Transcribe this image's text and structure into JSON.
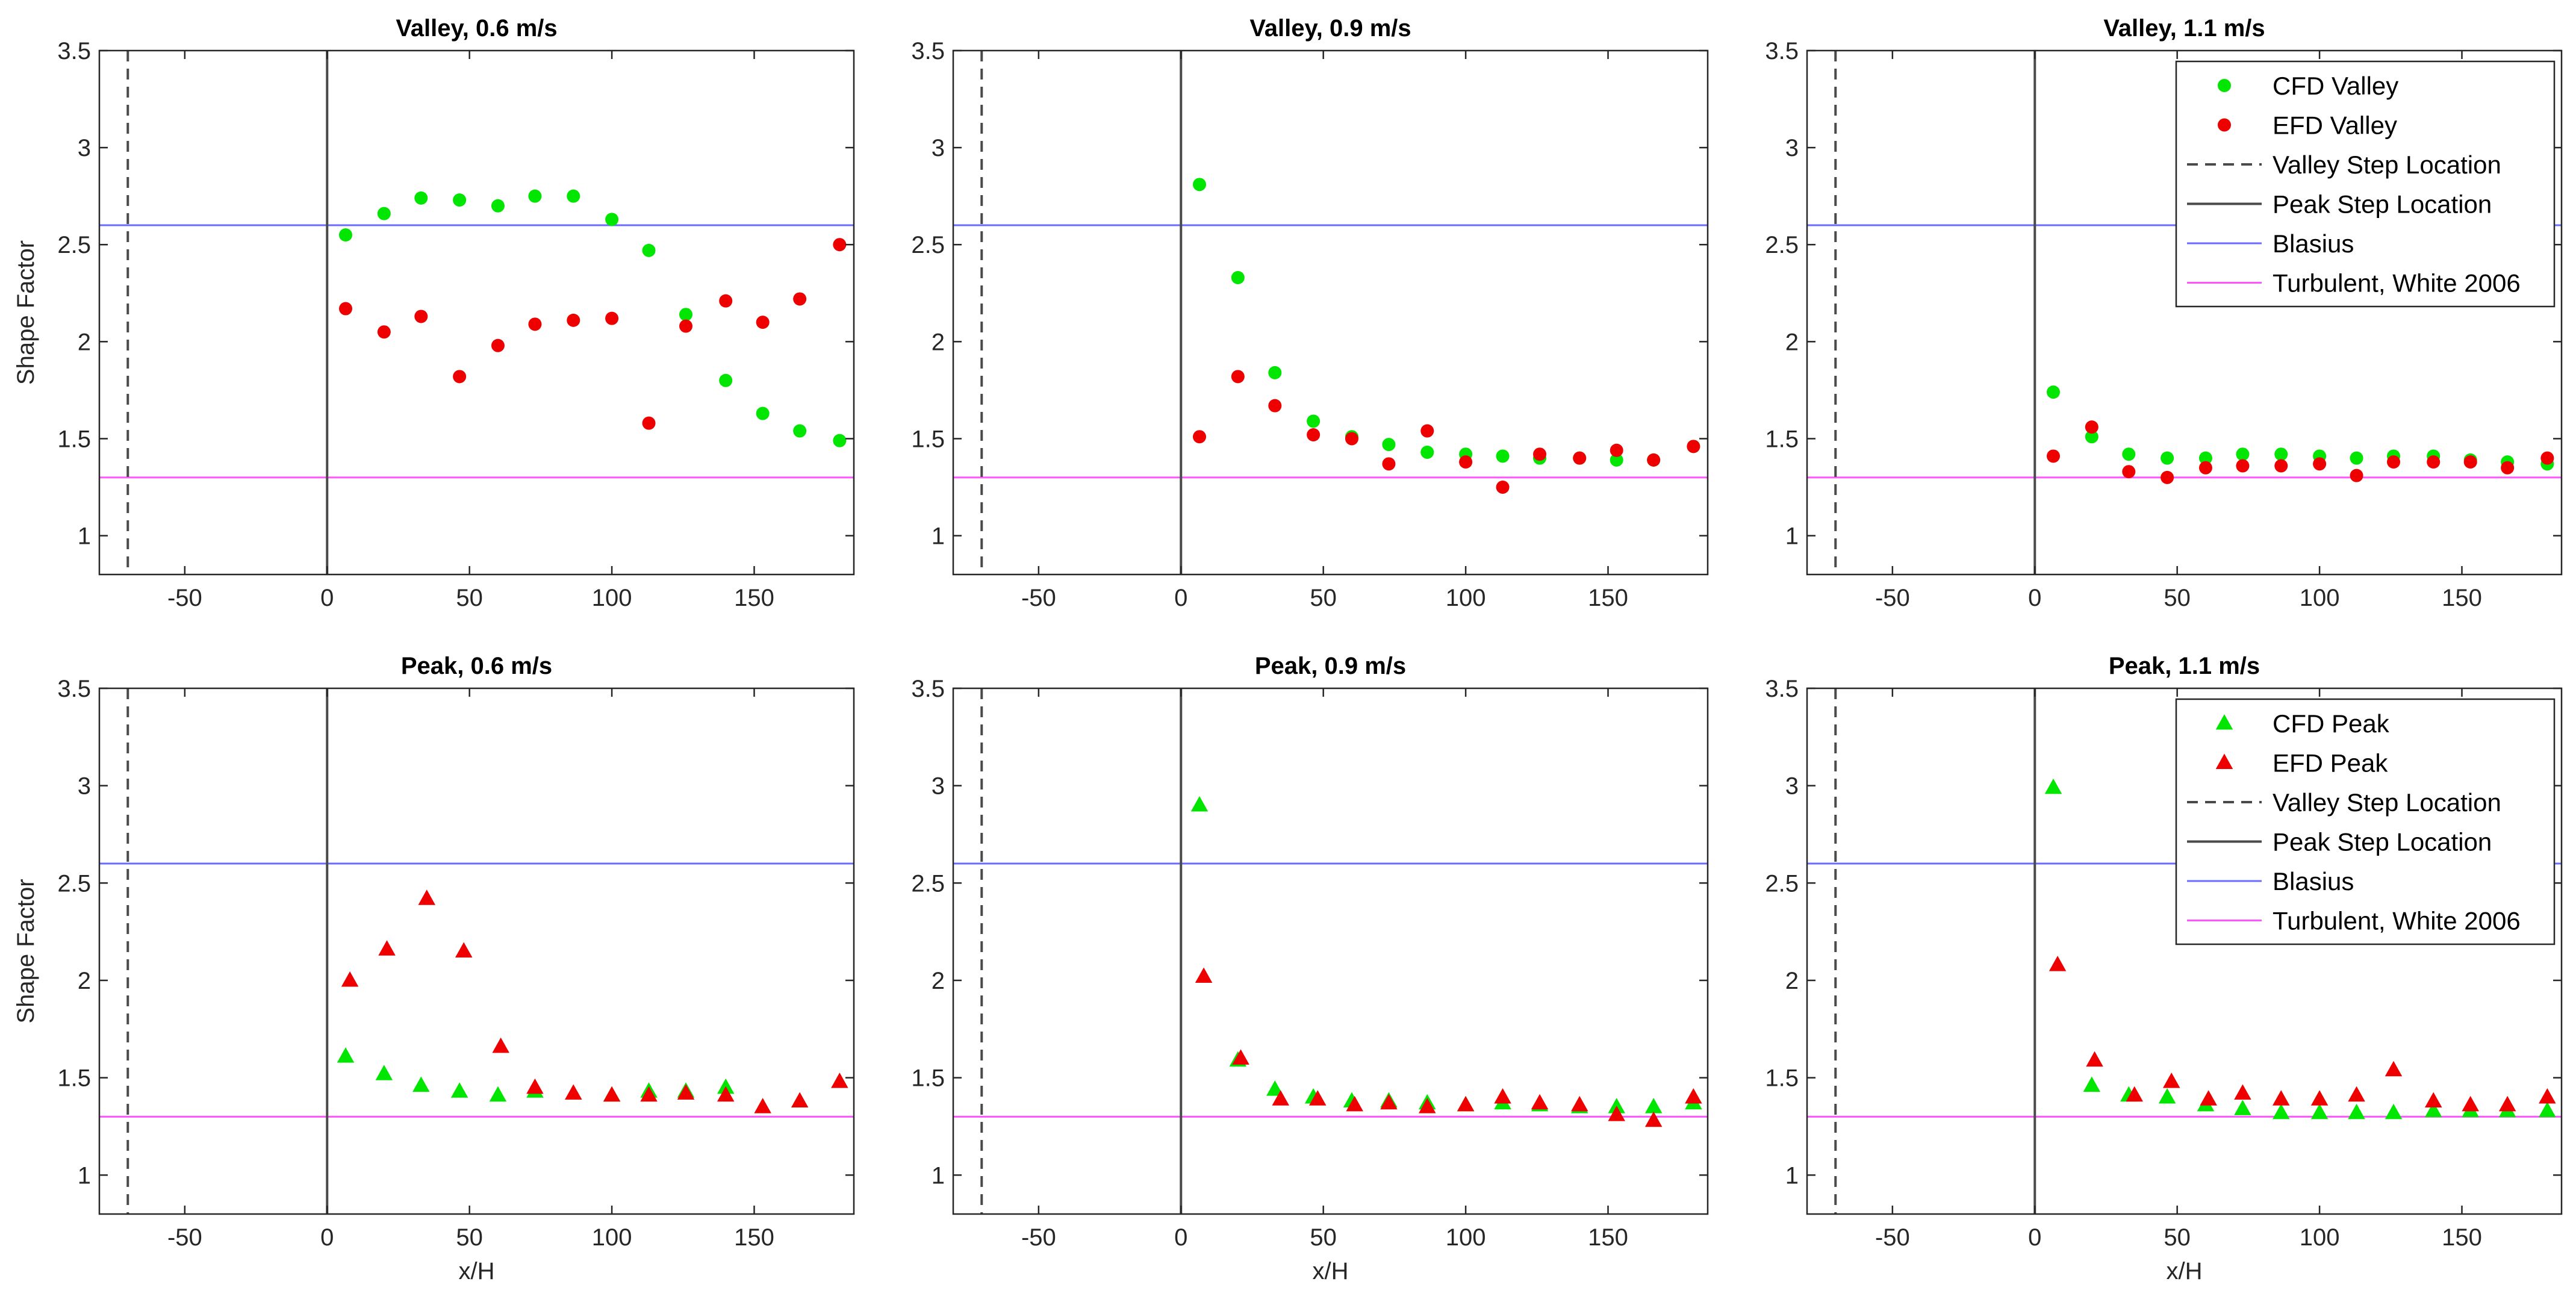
{
  "colors": {
    "cfd": "#00e600",
    "efd": "#ee0000",
    "blasius": "#6b6bff",
    "turbulent": "#ff55ff",
    "step": "#4a4a4a",
    "axes": "#262626"
  },
  "reference_lines": {
    "valley_step_x": -70,
    "peak_step_x": 0,
    "blasius_y": 2.6,
    "turbulent_y": 1.3
  },
  "legends": [
    {
      "panel_index": 2,
      "entries": [
        {
          "label": "CFD Valley",
          "marker": "circle",
          "color": "#00e600"
        },
        {
          "label": "EFD Valley",
          "marker": "circle",
          "color": "#ee0000"
        },
        {
          "label": "Valley Step Location",
          "line": "dashed",
          "color": "#4a4a4a"
        },
        {
          "label": "Peak Step Location",
          "line": "solid",
          "color": "#4a4a4a"
        },
        {
          "label": "Blasius",
          "line": "solid",
          "color": "#6b6bff"
        },
        {
          "label": "Turbulent, White 2006",
          "line": "solid",
          "color": "#ff55ff"
        }
      ]
    },
    {
      "panel_index": 5,
      "entries": [
        {
          "label": "CFD Peak",
          "marker": "triangle",
          "color": "#00e600"
        },
        {
          "label": "EFD Peak",
          "marker": "triangle",
          "color": "#ee0000"
        },
        {
          "label": "Valley Step Location",
          "line": "dashed",
          "color": "#4a4a4a"
        },
        {
          "label": "Peak Step Location",
          "line": "solid",
          "color": "#4a4a4a"
        },
        {
          "label": "Blasius",
          "line": "solid",
          "color": "#6b6bff"
        },
        {
          "label": "Turbulent, White 2006",
          "line": "solid",
          "color": "#ff55ff"
        }
      ]
    }
  ],
  "chart_data": [
    {
      "type": "scatter",
      "title": "Valley, 0.6 m/s",
      "marker": "circle",
      "xlabel": "",
      "ylabel": "Shape Factor",
      "xlim": [
        -80,
        185
      ],
      "ylim": [
        0.8,
        3.5
      ],
      "xticks": [
        -50,
        0,
        50,
        100,
        150
      ],
      "yticks": [
        1,
        1.5,
        2,
        2.5,
        3,
        3.5
      ],
      "series": [
        {
          "name": "CFD Valley",
          "x": [
            6.5,
            20,
            33,
            46.5,
            60,
            73,
            86.5,
            100,
            113,
            126,
            140,
            153,
            166,
            180
          ],
          "y": [
            2.55,
            2.66,
            2.74,
            2.73,
            2.7,
            2.75,
            2.75,
            2.63,
            2.47,
            2.14,
            1.8,
            1.63,
            1.54,
            1.49
          ]
        },
        {
          "name": "EFD Valley",
          "x": [
            6.5,
            20,
            33,
            46.5,
            60,
            73,
            86.5,
            100,
            113,
            126,
            140,
            153,
            166,
            180
          ],
          "y": [
            2.17,
            2.05,
            2.13,
            1.82,
            1.98,
            2.09,
            2.11,
            2.12,
            1.58,
            2.08,
            2.21,
            2.1,
            2.22,
            2.5
          ]
        }
      ]
    },
    {
      "type": "scatter",
      "title": "Valley, 0.9 m/s",
      "marker": "circle",
      "xlabel": "",
      "ylabel": "",
      "xlim": [
        -80,
        185
      ],
      "ylim": [
        0.8,
        3.5
      ],
      "xticks": [
        -50,
        0,
        50,
        100,
        150
      ],
      "yticks": [
        1,
        1.5,
        2,
        2.5,
        3,
        3.5
      ],
      "series": [
        {
          "name": "CFD Valley",
          "x": [
            6.5,
            20,
            33,
            46.5,
            60,
            73,
            86.5,
            100,
            113,
            126,
            140,
            153,
            166,
            180
          ],
          "y": [
            2.81,
            2.33,
            1.84,
            1.59,
            1.51,
            1.47,
            1.43,
            1.42,
            1.41,
            1.4,
            1.4,
            1.39,
            1.39,
            1.46
          ]
        },
        {
          "name": "EFD Valley",
          "x": [
            6.5,
            20,
            33,
            46.5,
            60,
            73,
            86.5,
            100,
            113,
            126,
            140,
            153,
            166,
            180
          ],
          "y": [
            1.51,
            1.82,
            1.67,
            1.52,
            1.5,
            1.37,
            1.54,
            1.38,
            1.25,
            1.42,
            1.4,
            1.44,
            1.39,
            1.46
          ]
        }
      ]
    },
    {
      "type": "scatter",
      "title": "Valley, 1.1 m/s",
      "marker": "circle",
      "xlabel": "",
      "ylabel": "",
      "xlim": [
        -80,
        185
      ],
      "ylim": [
        0.8,
        3.5
      ],
      "xticks": [
        -50,
        0,
        50,
        100,
        150
      ],
      "yticks": [
        1,
        1.5,
        2,
        2.5,
        3,
        3.5
      ],
      "series": [
        {
          "name": "CFD Valley",
          "x": [
            6.5,
            20,
            33,
            46.5,
            60,
            73,
            86.5,
            100,
            113,
            126,
            140,
            153,
            166,
            180
          ],
          "y": [
            1.74,
            1.51,
            1.42,
            1.4,
            1.4,
            1.42,
            1.42,
            1.41,
            1.4,
            1.41,
            1.41,
            1.39,
            1.38,
            1.37
          ]
        },
        {
          "name": "EFD Valley",
          "x": [
            6.5,
            20,
            33,
            46.5,
            60,
            73,
            86.5,
            100,
            113,
            126,
            140,
            153,
            166,
            180
          ],
          "y": [
            1.41,
            1.56,
            1.33,
            1.3,
            1.35,
            1.36,
            1.36,
            1.37,
            1.31,
            1.38,
            1.38,
            1.38,
            1.35,
            1.4
          ]
        }
      ]
    },
    {
      "type": "scatter",
      "title": "Peak, 0.6 m/s",
      "marker": "triangle",
      "xlabel": "x/H",
      "ylabel": "Shape Factor",
      "xlim": [
        -80,
        185
      ],
      "ylim": [
        0.8,
        3.5
      ],
      "xticks": [
        -50,
        0,
        50,
        100,
        150
      ],
      "yticks": [
        1,
        1.5,
        2,
        2.5,
        3,
        3.5
      ],
      "series": [
        {
          "name": "CFD Peak",
          "x": [
            6.5,
            20,
            33,
            46.5,
            60,
            73,
            100,
            113,
            126,
            140
          ],
          "y": [
            1.61,
            1.52,
            1.46,
            1.43,
            1.41,
            1.43,
            1.41,
            1.43,
            1.43,
            1.45
          ]
        },
        {
          "name": "EFD Peak",
          "x": [
            8,
            21,
            35,
            48,
            61,
            73,
            86.5,
            100,
            113,
            126,
            140,
            153,
            166,
            180
          ],
          "y": [
            2.0,
            2.16,
            2.42,
            2.15,
            1.66,
            1.45,
            1.42,
            1.41,
            1.41,
            1.42,
            1.41,
            1.35,
            1.38,
            1.48
          ]
        }
      ]
    },
    {
      "type": "scatter",
      "title": "Peak, 0.9 m/s",
      "marker": "triangle",
      "xlabel": "x/H",
      "ylabel": "",
      "xlim": [
        -80,
        185
      ],
      "ylim": [
        0.8,
        3.5
      ],
      "xticks": [
        -50,
        0,
        50,
        100,
        150
      ],
      "yticks": [
        1,
        1.5,
        2,
        2.5,
        3,
        3.5
      ],
      "series": [
        {
          "name": "CFD Peak",
          "x": [
            6.5,
            20,
            33,
            46.5,
            60,
            73,
            86.5,
            100,
            113,
            126,
            140,
            153,
            166,
            180
          ],
          "y": [
            2.9,
            1.59,
            1.44,
            1.4,
            1.38,
            1.38,
            1.37,
            1.36,
            1.37,
            1.36,
            1.35,
            1.35,
            1.35,
            1.37
          ]
        },
        {
          "name": "EFD Peak",
          "x": [
            8,
            21,
            35,
            48,
            61,
            73,
            86.5,
            100,
            113,
            126,
            140,
            153,
            166,
            180
          ],
          "y": [
            2.02,
            1.6,
            1.39,
            1.39,
            1.36,
            1.37,
            1.35,
            1.36,
            1.4,
            1.37,
            1.36,
            1.31,
            1.28,
            1.4
          ]
        }
      ]
    },
    {
      "type": "scatter",
      "title": "Peak, 1.1 m/s",
      "marker": "triangle",
      "xlabel": "x/H",
      "ylabel": "",
      "xlim": [
        -80,
        185
      ],
      "ylim": [
        0.8,
        3.5
      ],
      "xticks": [
        -50,
        0,
        50,
        100,
        150
      ],
      "yticks": [
        1,
        1.5,
        2,
        2.5,
        3,
        3.5
      ],
      "series": [
        {
          "name": "CFD Peak",
          "x": [
            6.5,
            20,
            33,
            46.5,
            60,
            73,
            86.5,
            100,
            113,
            126,
            140,
            153,
            166,
            180
          ],
          "y": [
            2.99,
            1.46,
            1.41,
            1.4,
            1.36,
            1.34,
            1.32,
            1.32,
            1.32,
            1.32,
            1.33,
            1.33,
            1.33,
            1.33
          ]
        },
        {
          "name": "EFD Peak",
          "x": [
            8,
            21,
            35,
            48,
            61,
            73,
            86.5,
            100,
            113,
            126,
            140,
            153,
            166,
            180
          ],
          "y": [
            2.08,
            1.59,
            1.41,
            1.48,
            1.39,
            1.42,
            1.39,
            1.39,
            1.41,
            1.54,
            1.38,
            1.36,
            1.36,
            1.4
          ]
        }
      ]
    }
  ]
}
